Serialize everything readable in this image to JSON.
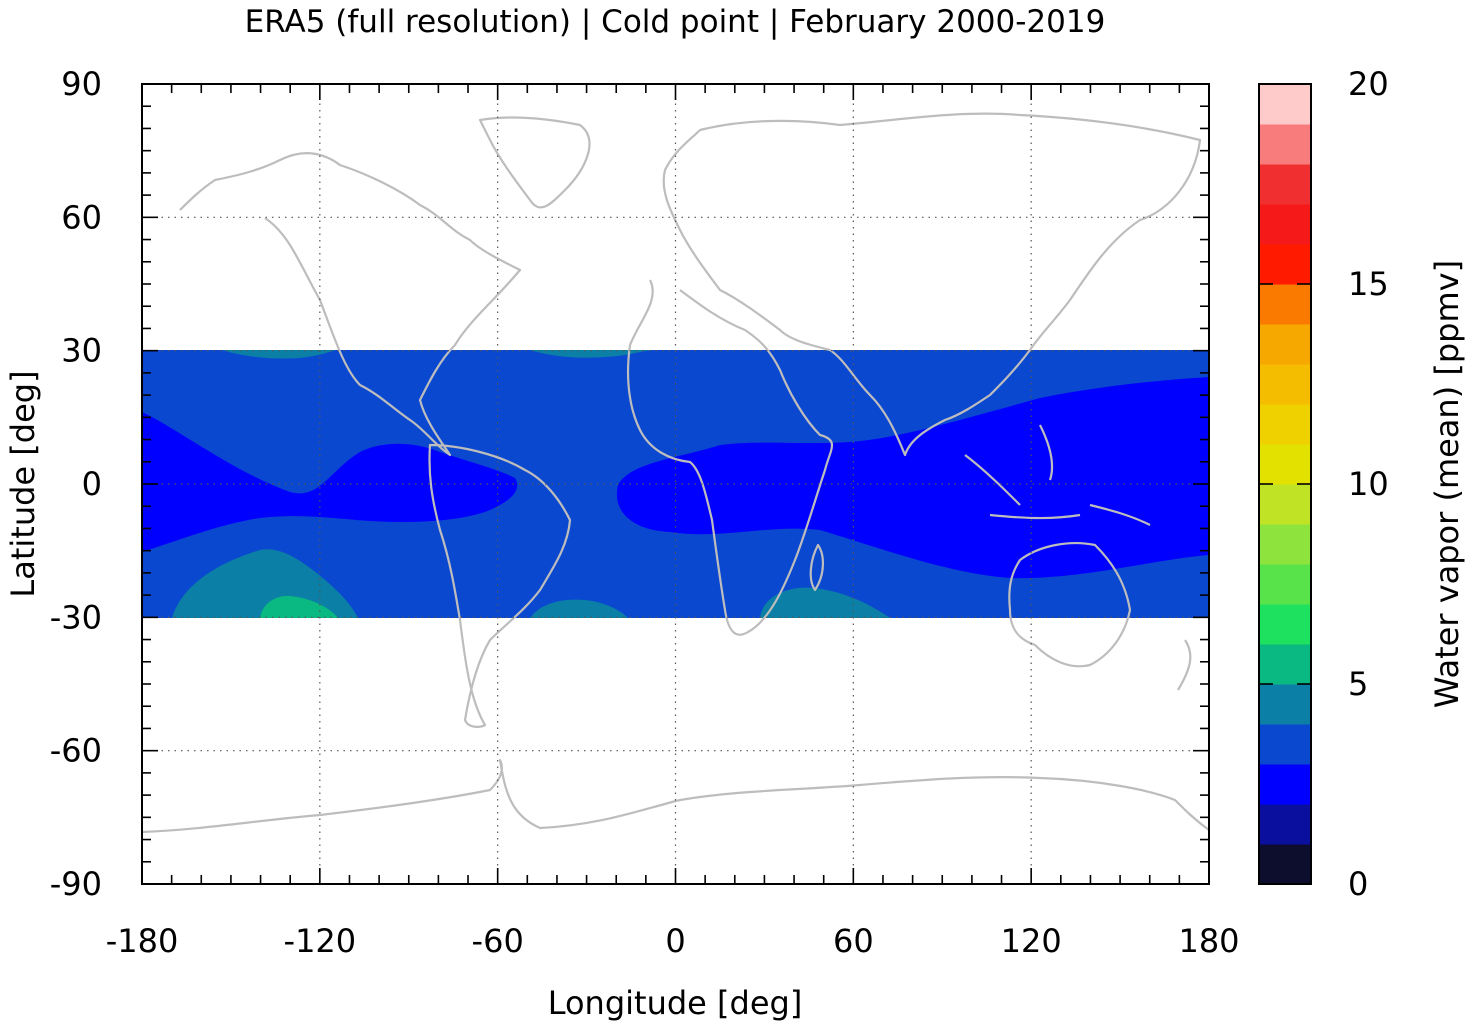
{
  "chart_data": {
    "type": "heatmap",
    "title": "ERA5 (full resolution) | Cold point | February 2000-2019",
    "xlabel": "Longitude [deg]",
    "ylabel": "Latitude [deg]",
    "colorbar_label": "Water vapor (mean) [ppmv]",
    "xlim": [
      -180,
      180
    ],
    "ylim": [
      -90,
      90
    ],
    "x_ticks": [
      -180,
      -120,
      -60,
      0,
      60,
      120,
      180
    ],
    "y_ticks": [
      -90,
      -60,
      -30,
      0,
      30,
      60,
      90
    ],
    "x_tick_labels": [
      "-180",
      "-120",
      "-60",
      "0",
      "60",
      "120",
      "180"
    ],
    "y_tick_labels": [
      "-90",
      "-60",
      "-30",
      "0",
      "30",
      "60",
      "90"
    ],
    "colorbar_range": [
      0,
      20
    ],
    "colorbar_ticks": [
      0,
      5,
      10,
      15,
      20
    ],
    "colorbar_tick_labels": [
      "0",
      "5",
      "10",
      "15",
      "20"
    ],
    "colorbar_step": 1,
    "colorbar_colors": [
      "#0d0d2e",
      "#0a0f9e",
      "#0000ff",
      "#0b48d0",
      "#0b7fa6",
      "#0ab882",
      "#1ee15f",
      "#59e34b",
      "#8ee33c",
      "#c1e326",
      "#e3e100",
      "#efd100",
      "#f4bd00",
      "#f7a800",
      "#fa7a00",
      "#ff1a00",
      "#f51919",
      "#f03030",
      "#f87c7c",
      "#ffcaca"
    ],
    "data_lat_range": [
      -30,
      30
    ],
    "grid": true,
    "coastlines": true,
    "contour_bands": [
      {
        "level_range": [
          3,
          4
        ],
        "color": "#0b48d0",
        "note": "background of tropical band"
      },
      {
        "level_range": [
          2,
          3
        ],
        "color": "#0000ff",
        "region": "eastern Pacific tongue (~-170 to -55 lon, -10 to 10 lat)"
      },
      {
        "level_range": [
          2,
          3
        ],
        "color": "#0000ff",
        "region": "Atlantic-Africa-Indian Ocean-Maritime Continent-West Pacific belt (~-20 to 180 lon)"
      },
      {
        "level_range": [
          4,
          5
        ],
        "color": "#0b7fa6",
        "region": "southern subtropical Pacific (~-170 to -110 lon, -30 to -18 lat)"
      },
      {
        "level_range": [
          5,
          6
        ],
        "color": "#0ab882",
        "region": "small patch near -140 lon, -28 lat"
      },
      {
        "level_range": [
          4,
          5
        ],
        "color": "#0b7fa6",
        "region": "South Atlantic edge (~-52 to -30 lon, -30 lat)"
      },
      {
        "level_range": [
          4,
          5
        ],
        "color": "#0b7fa6",
        "region": "South Indian Ocean edge (~28 to 60 lon, -30 lat)"
      },
      {
        "level_range": [
          4,
          5
        ],
        "color": "#0b7fa6",
        "region": "northern edge slivers (~-170 to -120 and ~-50 to -30 lon, 30 lat)"
      }
    ]
  }
}
